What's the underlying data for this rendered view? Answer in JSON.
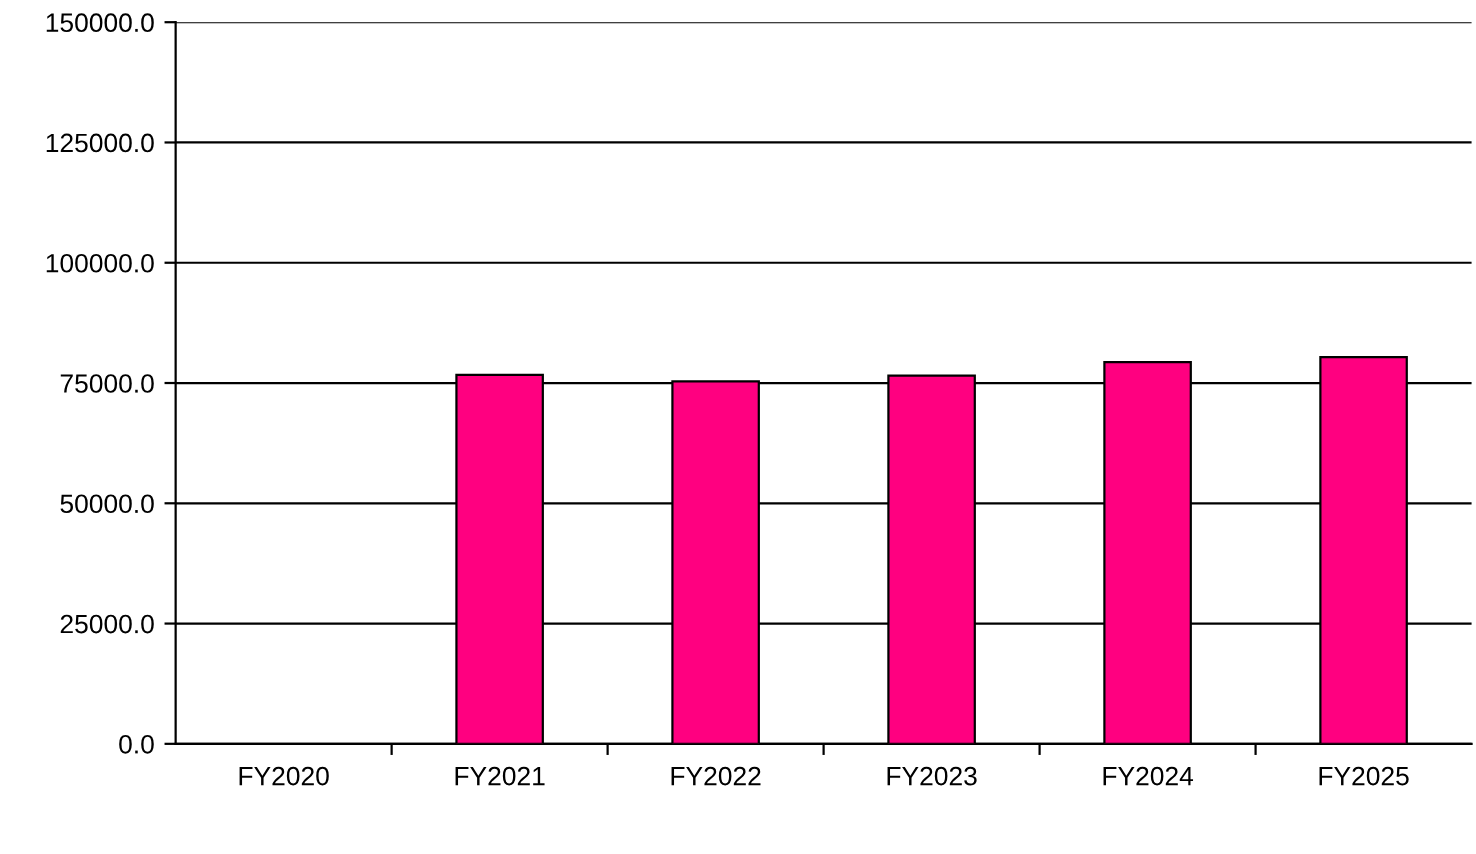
{
  "chart_data": {
    "type": "bar",
    "categories": [
      "FY2020",
      "FY2021",
      "FY2022",
      "FY2023",
      "FY2024",
      "FY2025"
    ],
    "values": [
      null,
      76700,
      75350,
      76550,
      79350,
      80400
    ],
    "color": "#ff0080",
    "ylim": [
      0,
      150000
    ],
    "yticks": [
      {
        "value": 0,
        "label": "0.0"
      },
      {
        "value": 25000,
        "label": "25000.0"
      },
      {
        "value": 50000,
        "label": "50000.0"
      },
      {
        "value": 75000,
        "label": "75000.0"
      },
      {
        "value": 100000,
        "label": "100000.0"
      },
      {
        "value": 125000,
        "label": "125000.0"
      },
      {
        "value": 150000,
        "label": "150000.0"
      }
    ],
    "grid": "y",
    "legend": false
  }
}
